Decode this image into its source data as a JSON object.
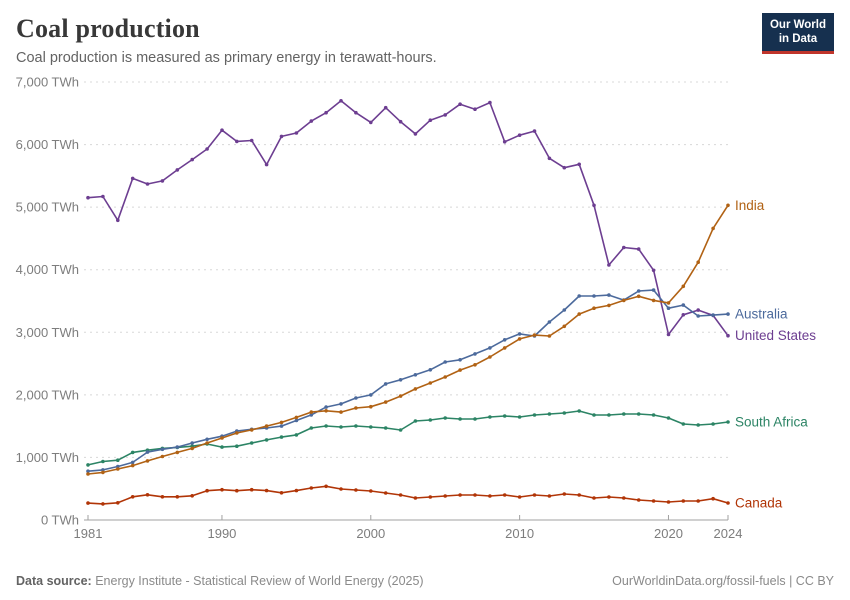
{
  "header": {
    "title": "Coal production",
    "subtitle": "Coal production is measured as primary energy in terawatt-hours."
  },
  "logo": {
    "line1": "Our World",
    "line2": "in Data",
    "bg_color": "#16304f",
    "accent_color": "#c0352b"
  },
  "footer": {
    "source_label": "Data source:",
    "source_text": " Energy Institute - Statistical Review of World Energy (2025)",
    "right_text": "OurWorldinData.org/fossil-fuels | CC BY"
  },
  "chart_data": {
    "type": "line",
    "unit": "TWh",
    "xlim": [
      1981,
      2024
    ],
    "ylim": [
      0,
      7000
    ],
    "grid": "horizontal-dashed",
    "legend_position": "right-end-labels",
    "x_ticks": [
      {
        "year": 1981,
        "label": "1981"
      },
      {
        "year": 1990,
        "label": "1990"
      },
      {
        "year": 2000,
        "label": "2000"
      },
      {
        "year": 2010,
        "label": "2010"
      },
      {
        "year": 2020,
        "label": "2020"
      },
      {
        "year": 2024,
        "label": "2024"
      }
    ],
    "y_ticks": [
      {
        "value": 0,
        "label": "0 TWh"
      },
      {
        "value": 1000,
        "label": "1,000 TWh"
      },
      {
        "value": 2000,
        "label": "2,000 TWh"
      },
      {
        "value": 3000,
        "label": "3,000 TWh"
      },
      {
        "value": 4000,
        "label": "4,000 TWh"
      },
      {
        "value": 5000,
        "label": "5,000 TWh"
      },
      {
        "value": 6000,
        "label": "6,000 TWh"
      },
      {
        "value": 7000,
        "label": "7,000 TWh"
      }
    ],
    "years": [
      1981,
      1982,
      1983,
      1984,
      1985,
      1986,
      1987,
      1988,
      1989,
      1990,
      1991,
      1992,
      1993,
      1994,
      1995,
      1996,
      1997,
      1998,
      1999,
      2000,
      2001,
      2002,
      2003,
      2004,
      2005,
      2006,
      2007,
      2008,
      2009,
      2010,
      2011,
      2012,
      2013,
      2014,
      2015,
      2016,
      2017,
      2018,
      2019,
      2020,
      2021,
      2022,
      2023,
      2024
    ],
    "series": [
      {
        "name": "India",
        "color": "#B16214",
        "values": [
          735,
          760,
          815,
          870,
          945,
          1015,
          1080,
          1145,
          1230,
          1310,
          1390,
          1440,
          1500,
          1560,
          1640,
          1725,
          1745,
          1725,
          1790,
          1810,
          1885,
          1980,
          2095,
          2190,
          2285,
          2395,
          2480,
          2605,
          2750,
          2895,
          2955,
          2940,
          3095,
          3290,
          3385,
          3430,
          3510,
          3575,
          3510,
          3470,
          3735,
          4120,
          4660,
          5030
        ]
      },
      {
        "name": "Australia",
        "color": "#4C6A9C",
        "values": [
          780,
          800,
          855,
          920,
          1085,
          1130,
          1165,
          1230,
          1290,
          1340,
          1420,
          1450,
          1470,
          1500,
          1590,
          1680,
          1805,
          1855,
          1950,
          2000,
          2175,
          2240,
          2320,
          2400,
          2525,
          2560,
          2655,
          2750,
          2880,
          2975,
          2940,
          3165,
          3356,
          3580,
          3580,
          3595,
          3515,
          3660,
          3675,
          3385,
          3435,
          3260,
          3275,
          3290
        ]
      },
      {
        "name": "United States",
        "color": "#6D3E91",
        "values": [
          5151,
          5170,
          4790,
          5460,
          5370,
          5420,
          5595,
          5760,
          5930,
          6230,
          6050,
          6065,
          5680,
          6130,
          6185,
          6375,
          6510,
          6700,
          6510,
          6355,
          6590,
          6365,
          6170,
          6390,
          6475,
          6645,
          6565,
          6670,
          6045,
          6150,
          6215,
          5780,
          5630,
          5685,
          5030,
          4075,
          4355,
          4330,
          3990,
          2965,
          3280,
          3355,
          3270,
          2945
        ]
      },
      {
        "name": "South Africa",
        "color": "#2C8465",
        "values": [
          880,
          935,
          955,
          1080,
          1115,
          1145,
          1160,
          1180,
          1215,
          1165,
          1180,
          1230,
          1280,
          1325,
          1360,
          1470,
          1502,
          1486,
          1502,
          1486,
          1470,
          1438,
          1582,
          1598,
          1630,
          1614,
          1614,
          1646,
          1662,
          1646,
          1678,
          1694,
          1710,
          1742,
          1678,
          1678,
          1694,
          1694,
          1678,
          1630,
          1534,
          1518,
          1534,
          1566
        ]
      },
      {
        "name": "Canada",
        "color": "#B13507",
        "values": [
          270,
          258,
          275,
          370,
          403,
          371,
          371,
          387,
          468,
          484,
          468,
          484,
          470,
          435,
          470,
          511,
          539,
          495,
          479,
          463,
          431,
          399,
          351,
          367,
          383,
          399,
          399,
          383,
          399,
          367,
          399,
          383,
          415,
          399,
          351,
          367,
          351,
          320,
          304,
          288,
          304,
          304,
          340,
          272
        ]
      }
    ]
  }
}
